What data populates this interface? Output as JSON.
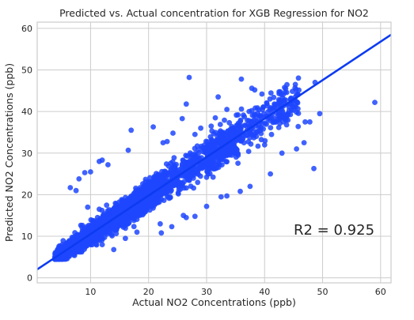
{
  "chart_data": {
    "type": "scatter",
    "title": "Predicted vs. Actual concentration for XGB Regression for NO2",
    "xlabel": "Actual NO2 Concentrations (ppb)",
    "ylabel": "Predicted NO2 Concentrations (ppb)",
    "xlim": [
      0.8,
      61.8
    ],
    "ylim": [
      -1.2,
      61.5
    ],
    "xticks": [
      10,
      20,
      30,
      40,
      50,
      60
    ],
    "yticks": [
      0,
      10,
      20,
      30,
      40,
      50,
      60
    ],
    "grid": true,
    "regression_line": {
      "slope": 0.925,
      "intercept": 1.3
    },
    "annotation": "R2 = 0.925",
    "colors": {
      "points": "#1f46ff",
      "line": "#0d3bf2",
      "grid": "#cccccc",
      "axes": "#cccccc"
    },
    "outliers": [
      [
        59,
        42.2
      ],
      [
        48.5,
        26.3
      ],
      [
        27,
        48.2
      ],
      [
        32,
        43.5
      ],
      [
        36,
        47.8
      ],
      [
        37.8,
        45.6
      ],
      [
        38.3,
        45.2
      ],
      [
        42.5,
        44.3
      ],
      [
        45.3,
        46.5
      ],
      [
        48.7,
        47
      ],
      [
        49.5,
        39.5
      ],
      [
        47.8,
        37.5
      ],
      [
        46.8,
        32.5
      ],
      [
        42.5,
        38
      ],
      [
        11.5,
        28
      ],
      [
        12,
        28.3
      ],
      [
        13,
        27.2
      ],
      [
        16.5,
        30.7
      ],
      [
        17,
        35.5
      ],
      [
        20.8,
        36.3
      ],
      [
        24.2,
        34.8
      ],
      [
        26.5,
        41.8
      ],
      [
        25.8,
        38.3
      ],
      [
        30.8,
        36.5
      ],
      [
        22.5,
        32.5
      ],
      [
        23.2,
        32.8
      ],
      [
        28,
        34.5
      ],
      [
        29,
        36
      ],
      [
        31.5,
        38.5
      ],
      [
        33.5,
        40.5
      ],
      [
        8,
        23.8
      ],
      [
        9,
        25.3
      ],
      [
        10,
        25.5
      ],
      [
        6.5,
        21.7
      ],
      [
        7.5,
        21
      ],
      [
        9.5,
        17
      ],
      [
        11.5,
        16.5
      ],
      [
        18,
        11
      ],
      [
        22.2,
        10.8
      ],
      [
        24,
        12.3
      ],
      [
        26.5,
        14.5
      ],
      [
        28,
        14.8
      ],
      [
        30,
        17.2
      ],
      [
        32.5,
        19.5
      ],
      [
        33.5,
        19.7
      ],
      [
        35.8,
        20.8
      ],
      [
        37.5,
        22
      ],
      [
        41,
        25
      ],
      [
        43,
        30
      ],
      [
        45.5,
        31
      ],
      [
        40,
        32
      ],
      [
        47,
        37.5
      ],
      [
        14,
        6.8
      ],
      [
        12,
        8
      ],
      [
        16,
        9.5
      ],
      [
        26,
        15
      ],
      [
        22,
        13
      ]
    ]
  }
}
